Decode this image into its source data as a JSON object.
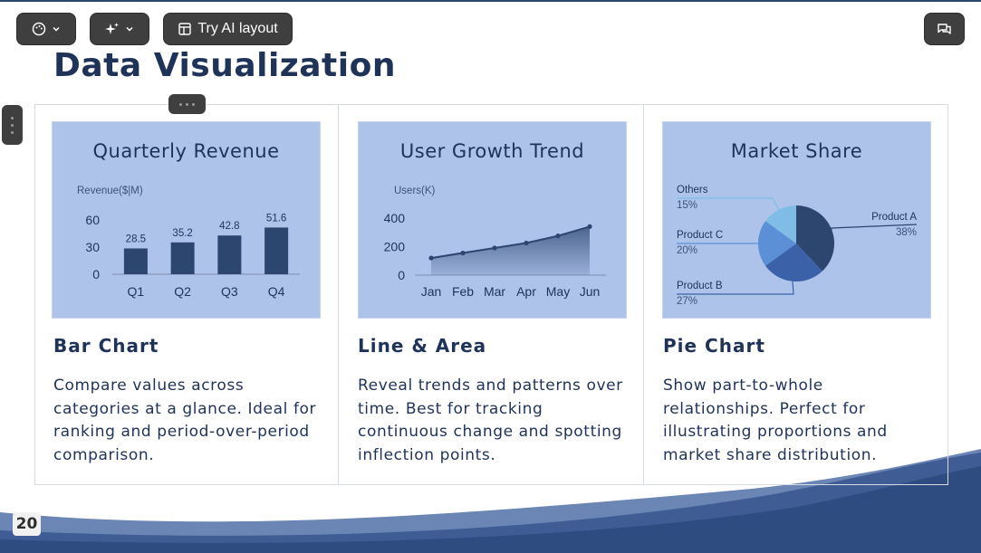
{
  "toolbar": {
    "theme_icon": "palette-icon",
    "ai_icon": "sparkles-icon",
    "layout_icon": "layout-icon",
    "try_ai_label": "Try AI layout",
    "comment_icon": "chat-icon"
  },
  "slide": {
    "title": "Data Visualization",
    "page_number": "20",
    "colors": {
      "accent": "#2c4670",
      "chart_bg": "#aec3ea",
      "title": "#1f3359"
    }
  },
  "cards": [
    {
      "chart_title": "Quarterly Revenue",
      "heading": "Bar Chart",
      "description": "Compare values across categories at a glance. Ideal for ranking and period-over-period comparison."
    },
    {
      "chart_title": "User Growth Trend",
      "heading": "Line & Area",
      "description": "Reveal trends and patterns over time. Best for tracking continuous change and spotting inflection points."
    },
    {
      "chart_title": "Market Share",
      "heading": "Pie Chart",
      "description": "Show part-to-whole relationships. Perfect for illustrating proportions and market share distribution."
    }
  ],
  "chart_data": [
    {
      "type": "bar",
      "title": "Quarterly Revenue",
      "ylabel": "Revenue($|M)",
      "categories": [
        "Q1",
        "Q2",
        "Q3",
        "Q4"
      ],
      "values": [
        28.5,
        35.2,
        42.8,
        51.6
      ],
      "yticks": [
        0,
        30,
        60
      ],
      "ylim": [
        0,
        70
      ],
      "color": "#2c4670"
    },
    {
      "type": "area",
      "title": "User Growth Trend",
      "ylabel": "Users(K)",
      "categories": [
        "Jan",
        "Feb",
        "Mar",
        "Apr",
        "May",
        "Jun"
      ],
      "values": [
        120,
        155,
        190,
        225,
        275,
        340
      ],
      "yticks": [
        0,
        200,
        400
      ],
      "ylim": [
        0,
        450
      ],
      "color": "#2c4670"
    },
    {
      "type": "pie",
      "title": "Market Share",
      "slices": [
        {
          "label": "Product A",
          "value": 38,
          "pct": "38%",
          "color": "#2c4670"
        },
        {
          "label": "Product B",
          "value": 27,
          "pct": "27%",
          "color": "#3b62a8"
        },
        {
          "label": "Product C",
          "value": 20,
          "pct": "20%",
          "color": "#5b8fd6"
        },
        {
          "label": "Others",
          "value": 15,
          "pct": "15%",
          "color": "#7fbde6"
        }
      ]
    }
  ]
}
